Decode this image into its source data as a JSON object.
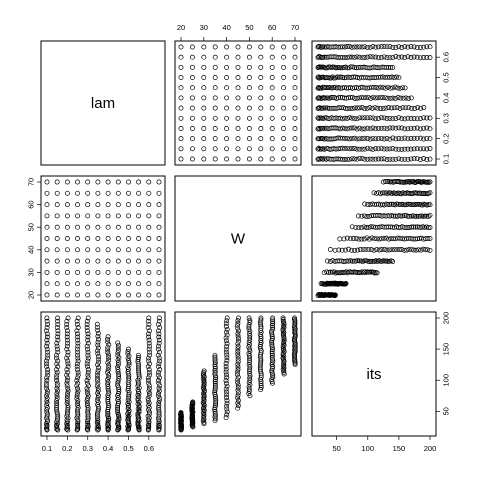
{
  "chart_data": {
    "type": "scatter-matrix",
    "variables": [
      {
        "name": "lam",
        "ticks": [
          0.1,
          0.2,
          0.3,
          0.4,
          0.5,
          0.6
        ],
        "range": [
          0.1,
          0.65
        ],
        "levels": [
          0.1,
          0.15,
          0.2,
          0.25,
          0.3,
          0.35,
          0.4,
          0.45,
          0.5,
          0.55,
          0.6,
          0.65
        ]
      },
      {
        "name": "W",
        "ticks": [
          20,
          30,
          40,
          50,
          60,
          70
        ],
        "range": [
          20,
          70
        ],
        "levels": [
          20,
          25,
          30,
          35,
          40,
          45,
          50,
          55,
          60,
          65,
          70
        ]
      },
      {
        "name": "its",
        "ticks": [
          50,
          100,
          150,
          200
        ],
        "range": [
          20,
          200
        ]
      }
    ],
    "relations": {
      "its_vs_W": [
        {
          "W": 20,
          "min": 20,
          "max": 48
        },
        {
          "W": 25,
          "min": 25,
          "max": 65
        },
        {
          "W": 30,
          "min": 30,
          "max": 115
        },
        {
          "W": 35,
          "min": 35,
          "max": 140
        },
        {
          "W": 40,
          "min": 40,
          "max": 200
        },
        {
          "W": 45,
          "min": 55,
          "max": 200
        },
        {
          "W": 50,
          "min": 75,
          "max": 200
        },
        {
          "W": 55,
          "min": 85,
          "max": 200
        },
        {
          "W": 60,
          "min": 95,
          "max": 200
        },
        {
          "W": 65,
          "min": 110,
          "max": 200
        },
        {
          "W": 70,
          "min": 125,
          "max": 200
        }
      ],
      "its_vs_lam": [
        {
          "lam": 0.1,
          "min": 20,
          "max": 200
        },
        {
          "lam": 0.15,
          "min": 20,
          "max": 200
        },
        {
          "lam": 0.2,
          "min": 20,
          "max": 200
        },
        {
          "lam": 0.25,
          "min": 20,
          "max": 200
        },
        {
          "lam": 0.3,
          "min": 20,
          "max": 200
        },
        {
          "lam": 0.35,
          "min": 20,
          "max": 190
        },
        {
          "lam": 0.4,
          "min": 20,
          "max": 170
        },
        {
          "lam": 0.45,
          "min": 20,
          "max": 160
        },
        {
          "lam": 0.5,
          "min": 20,
          "max": 150
        },
        {
          "lam": 0.55,
          "min": 20,
          "max": 140
        },
        {
          "lam": 0.6,
          "min": 20,
          "max": 200
        },
        {
          "lam": 0.65,
          "min": 20,
          "max": 200
        }
      ]
    }
  }
}
